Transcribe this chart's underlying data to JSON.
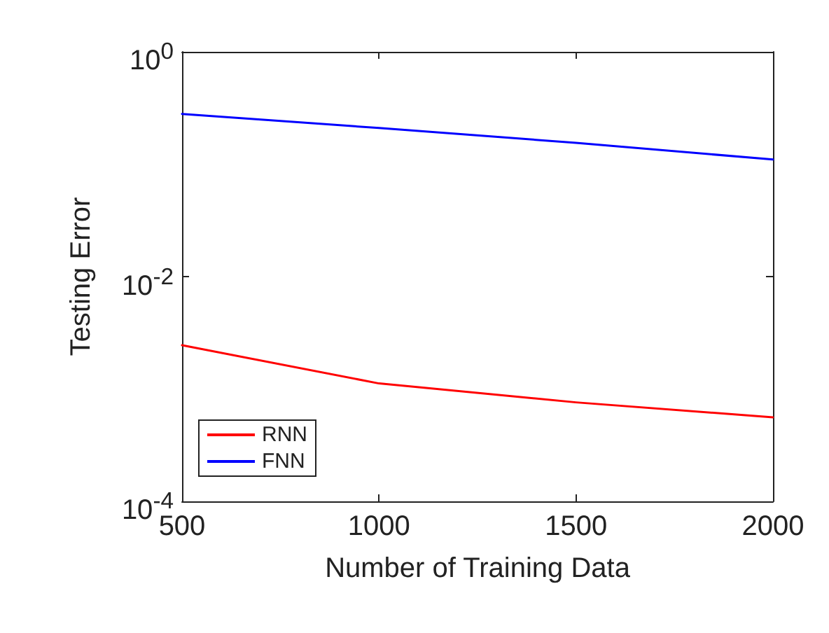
{
  "chart_data": {
    "type": "line",
    "xlabel": "Number of Training Data",
    "ylabel": "Testing Error",
    "x": [
      500,
      1000,
      1500,
      2000
    ],
    "series": [
      {
        "name": "RNN",
        "color": "#ff0000",
        "values": [
          0.00245,
          0.00112,
          0.00076,
          0.00056
        ]
      },
      {
        "name": "FNN",
        "color": "#0000ff",
        "values": [
          0.28,
          0.21,
          0.155,
          0.11
        ]
      }
    ],
    "xlim": [
      500,
      2000
    ],
    "xticks": [
      500,
      1000,
      1500,
      2000
    ],
    "ylim": [
      0.0001,
      1
    ],
    "yticks": [
      {
        "value": 0.0001,
        "label": "10$^{-4}$"
      },
      {
        "value": 0.01,
        "label": "10$^{-2}$"
      },
      {
        "value": 1,
        "label": "10$^{0}$"
      }
    ],
    "log": "y",
    "grid": false,
    "legend": "bottom left",
    "marker": "none",
    "line_style": "solid"
  }
}
